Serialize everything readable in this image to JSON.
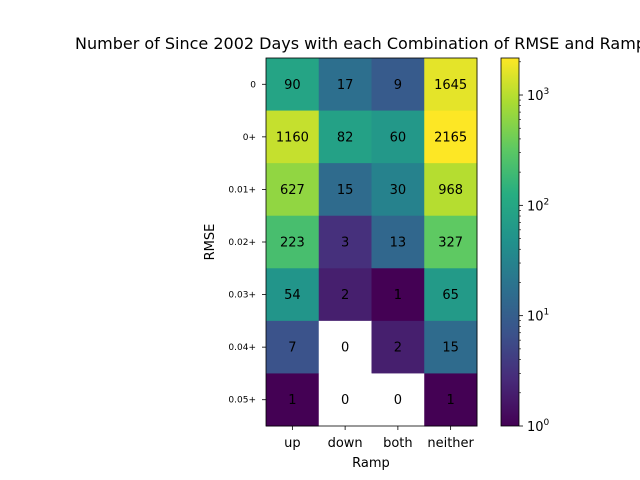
{
  "chart_data": {
    "type": "heatmap",
    "title": "Number of Since 2002 Days with each Combination of RMSE and Ramp",
    "xlabel": "Ramp",
    "ylabel": "RMSE",
    "x_categories": [
      "up",
      "down",
      "both",
      "neither"
    ],
    "y_categories": [
      "0",
      "0+",
      "0.01+",
      "0.02+",
      "0.03+",
      "0.04+",
      "0.05+"
    ],
    "values": [
      [
        90,
        17,
        9,
        1645
      ],
      [
        1160,
        82,
        60,
        2165
      ],
      [
        627,
        15,
        30,
        968
      ],
      [
        223,
        3,
        13,
        327
      ],
      [
        54,
        2,
        1,
        65
      ],
      [
        7,
        0,
        2,
        15
      ],
      [
        1,
        0,
        0,
        1
      ]
    ],
    "color_scale": "log",
    "colormap": "viridis",
    "zero_color": "#ffffff",
    "colorbar": {
      "range": [
        1,
        2165
      ],
      "ticks": [
        {
          "value": 1,
          "base": "10",
          "exp": "0"
        },
        {
          "value": 10,
          "base": "10",
          "exp": "1"
        },
        {
          "value": 100,
          "base": "10",
          "exp": "2"
        },
        {
          "value": 1000,
          "base": "10",
          "exp": "3"
        }
      ]
    }
  }
}
